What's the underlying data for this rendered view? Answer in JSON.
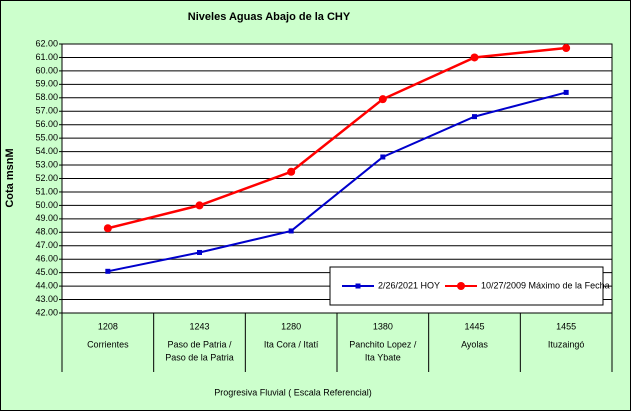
{
  "chart_data": {
    "type": "line",
    "title": "Niveles Aguas Abajo de la CHY",
    "x_label": "Progresiva Fluvial ( Escala Referencial)",
    "y_label": "Cota msnM",
    "categories": [
      "1208",
      "1243",
      "1280",
      "1380",
      "1445",
      "1455"
    ],
    "category_names": [
      [
        "Corrientes"
      ],
      [
        "Paso de Patria /",
        "Paso de la Patria"
      ],
      [
        "Ita Cora / Itatí"
      ],
      [
        "Panchito Lopez /",
        "Ita Ybate"
      ],
      [
        "Ayolas"
      ],
      [
        "Ituzaingó"
      ]
    ],
    "series": [
      {
        "name": "2/26/2021 HOY",
        "color": "#0000cc",
        "marker": "square",
        "values": [
          45.1,
          46.5,
          48.1,
          53.6,
          56.6,
          58.4
        ]
      },
      {
        "name": "10/27/2009 Máximo de la Fecha",
        "color": "#ff0000",
        "marker": "circle",
        "values": [
          48.3,
          50.0,
          52.5,
          57.9,
          61.0,
          61.7
        ]
      }
    ],
    "ylim": [
      42,
      62
    ],
    "yticks": [
      {
        "value": 42,
        "label": "42.00"
      },
      {
        "value": 43,
        "label": "43.00"
      },
      {
        "value": 44,
        "label": "44.00"
      },
      {
        "value": 45,
        "label": "45.00"
      },
      {
        "value": 46,
        "label": "46.00"
      },
      {
        "value": 47,
        "label": "47.00"
      },
      {
        "value": 48,
        "label": "48.00"
      },
      {
        "value": 49,
        "label": "49.00"
      },
      {
        "value": 50,
        "label": "50.00"
      },
      {
        "value": 51,
        "label": "51.00"
      },
      {
        "value": 52,
        "label": "52.00"
      },
      {
        "value": 53,
        "label": "53.00"
      },
      {
        "value": 54,
        "label": "54.00"
      },
      {
        "value": 55,
        "label": "55.00"
      },
      {
        "value": 56,
        "label": "56.00"
      },
      {
        "value": 57,
        "label": "57.00"
      },
      {
        "value": 58,
        "label": "58.00"
      },
      {
        "value": 59,
        "label": "59.00"
      },
      {
        "value": 60,
        "label": "60.00"
      },
      {
        "value": 61,
        "label": "61.00"
      },
      {
        "value": 62,
        "label": "62.00"
      }
    ],
    "grid": true,
    "legend": "lower-right"
  }
}
